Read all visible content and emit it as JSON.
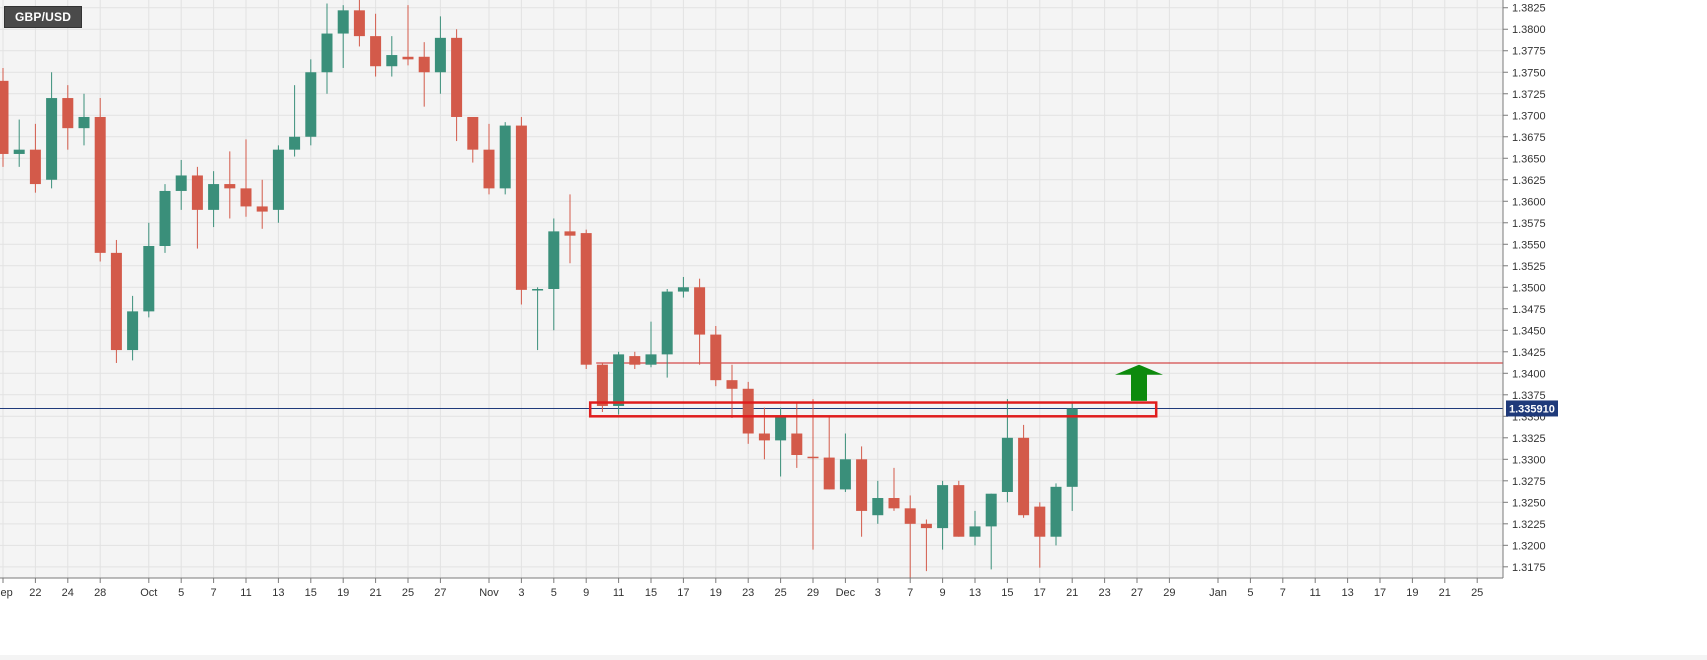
{
  "symbol": "GBP/USD",
  "current_price_label": "1.335910",
  "colors": {
    "up": "#3a8f7a",
    "down": "#d35a4a",
    "resistance_line": "#cc1f1f",
    "price_line": "#1f3a7a",
    "zone_border": "#e01e1e",
    "arrow": "#0d8a0d",
    "grid": "#e2e2e2",
    "price_badge": "#1f3a7a"
  },
  "chart_data": {
    "type": "candlestick",
    "title": "GBP/USD",
    "ylim": [
      1.3162,
      1.3834
    ],
    "y_ticks": [
      1.3175,
      1.32,
      1.3225,
      1.325,
      1.3275,
      1.33,
      1.3325,
      1.335,
      1.3375,
      1.34,
      1.3425,
      1.345,
      1.3475,
      1.35,
      1.3525,
      1.355,
      1.3575,
      1.36,
      1.3625,
      1.365,
      1.3675,
      1.37,
      1.3725,
      1.375,
      1.3775,
      1.38,
      1.3825
    ],
    "y_tick_labels": [
      "1.3175",
      "1.3200",
      "1.3225",
      "1.3250",
      "1.3275",
      "1.3300",
      "1.3325",
      "1.3350",
      "1.3375",
      "1.3400",
      "1.3425",
      "1.3450",
      "1.3475",
      "1.3500",
      "1.3525",
      "1.3550",
      "1.3575",
      "1.3600",
      "1.3625",
      "1.3650",
      "1.3675",
      "1.3700",
      "1.3725",
      "1.3750",
      "1.3775",
      "1.3800",
      "1.3825"
    ],
    "x_labels": [
      {
        "slot": 0,
        "label": "Sep"
      },
      {
        "slot": 2,
        "label": "22"
      },
      {
        "slot": 4,
        "label": "24"
      },
      {
        "slot": 6,
        "label": "28"
      },
      {
        "slot": 9,
        "label": "Oct"
      },
      {
        "slot": 11,
        "label": "5"
      },
      {
        "slot": 13,
        "label": "7"
      },
      {
        "slot": 15,
        "label": "11"
      },
      {
        "slot": 17,
        "label": "13"
      },
      {
        "slot": 19,
        "label": "15"
      },
      {
        "slot": 21,
        "label": "19"
      },
      {
        "slot": 23,
        "label": "21"
      },
      {
        "slot": 25,
        "label": "25"
      },
      {
        "slot": 27,
        "label": "27"
      },
      {
        "slot": 30,
        "label": "Nov"
      },
      {
        "slot": 32,
        "label": "3"
      },
      {
        "slot": 34,
        "label": "5"
      },
      {
        "slot": 36,
        "label": "9"
      },
      {
        "slot": 38,
        "label": "11"
      },
      {
        "slot": 40,
        "label": "15"
      },
      {
        "slot": 42,
        "label": "17"
      },
      {
        "slot": 44,
        "label": "19"
      },
      {
        "slot": 46,
        "label": "23"
      },
      {
        "slot": 48,
        "label": "25"
      },
      {
        "slot": 50,
        "label": "29"
      },
      {
        "slot": 52,
        "label": "Dec"
      },
      {
        "slot": 54,
        "label": "3"
      },
      {
        "slot": 56,
        "label": "7"
      },
      {
        "slot": 58,
        "label": "9"
      },
      {
        "slot": 60,
        "label": "13"
      },
      {
        "slot": 62,
        "label": "15"
      },
      {
        "slot": 64,
        "label": "17"
      },
      {
        "slot": 66,
        "label": "21"
      },
      {
        "slot": 68,
        "label": "23"
      },
      {
        "slot": 70,
        "label": "27"
      },
      {
        "slot": 72,
        "label": "29"
      },
      {
        "slot": 75,
        "label": "Jan"
      },
      {
        "slot": 77,
        "label": "5"
      },
      {
        "slot": 79,
        "label": "7"
      },
      {
        "slot": 81,
        "label": "11"
      },
      {
        "slot": 83,
        "label": "13"
      },
      {
        "slot": 85,
        "label": "17"
      },
      {
        "slot": 87,
        "label": "19"
      },
      {
        "slot": 89,
        "label": "21"
      },
      {
        "slot": 91,
        "label": "25"
      }
    ],
    "candles": [
      {
        "slot": 0,
        "o": 1.374,
        "h": 1.3755,
        "l": 1.364,
        "c": 1.3655
      },
      {
        "slot": 1,
        "o": 1.3655,
        "h": 1.3695,
        "l": 1.364,
        "c": 1.366
      },
      {
        "slot": 2,
        "o": 1.366,
        "h": 1.369,
        "l": 1.361,
        "c": 1.362
      },
      {
        "slot": 3,
        "o": 1.3625,
        "h": 1.375,
        "l": 1.3615,
        "c": 1.372
      },
      {
        "slot": 4,
        "o": 1.372,
        "h": 1.3735,
        "l": 1.366,
        "c": 1.3685
      },
      {
        "slot": 5,
        "o": 1.3685,
        "h": 1.3725,
        "l": 1.3665,
        "c": 1.3698
      },
      {
        "slot": 6,
        "o": 1.3698,
        "h": 1.372,
        "l": 1.353,
        "c": 1.354
      },
      {
        "slot": 7,
        "o": 1.354,
        "h": 1.3555,
        "l": 1.3412,
        "c": 1.3427
      },
      {
        "slot": 8,
        "o": 1.3427,
        "h": 1.349,
        "l": 1.3415,
        "c": 1.3472
      },
      {
        "slot": 9,
        "o": 1.3472,
        "h": 1.3575,
        "l": 1.3465,
        "c": 1.3548
      },
      {
        "slot": 10,
        "o": 1.3548,
        "h": 1.362,
        "l": 1.354,
        "c": 1.3612
      },
      {
        "slot": 11,
        "o": 1.3612,
        "h": 1.3648,
        "l": 1.359,
        "c": 1.363
      },
      {
        "slot": 12,
        "o": 1.363,
        "h": 1.364,
        "l": 1.3545,
        "c": 1.359
      },
      {
        "slot": 13,
        "o": 1.359,
        "h": 1.3635,
        "l": 1.357,
        "c": 1.362
      },
      {
        "slot": 14,
        "o": 1.362,
        "h": 1.3658,
        "l": 1.358,
        "c": 1.3615
      },
      {
        "slot": 15,
        "o": 1.3615,
        "h": 1.3672,
        "l": 1.3582,
        "c": 1.3594
      },
      {
        "slot": 16,
        "o": 1.3594,
        "h": 1.3625,
        "l": 1.3568,
        "c": 1.3588
      },
      {
        "slot": 17,
        "o": 1.359,
        "h": 1.3665,
        "l": 1.3575,
        "c": 1.366
      },
      {
        "slot": 18,
        "o": 1.366,
        "h": 1.3735,
        "l": 1.3652,
        "c": 1.3675
      },
      {
        "slot": 19,
        "o": 1.3675,
        "h": 1.3765,
        "l": 1.3665,
        "c": 1.375
      },
      {
        "slot": 20,
        "o": 1.375,
        "h": 1.383,
        "l": 1.3725,
        "c": 1.3795
      },
      {
        "slot": 21,
        "o": 1.3795,
        "h": 1.3828,
        "l": 1.3755,
        "c": 1.3822
      },
      {
        "slot": 22,
        "o": 1.3822,
        "h": 1.3835,
        "l": 1.378,
        "c": 1.3792
      },
      {
        "slot": 23,
        "o": 1.3792,
        "h": 1.3818,
        "l": 1.3745,
        "c": 1.3757
      },
      {
        "slot": 24,
        "o": 1.3757,
        "h": 1.3792,
        "l": 1.3745,
        "c": 1.377
      },
      {
        "slot": 25,
        "o": 1.3768,
        "h": 1.3828,
        "l": 1.3758,
        "c": 1.3765
      },
      {
        "slot": 26,
        "o": 1.3768,
        "h": 1.3785,
        "l": 1.371,
        "c": 1.375
      },
      {
        "slot": 27,
        "o": 1.375,
        "h": 1.3815,
        "l": 1.3725,
        "c": 1.379
      },
      {
        "slot": 28,
        "o": 1.379,
        "h": 1.38,
        "l": 1.367,
        "c": 1.3698
      },
      {
        "slot": 29,
        "o": 1.3698,
        "h": 1.3695,
        "l": 1.3645,
        "c": 1.366
      },
      {
        "slot": 30,
        "o": 1.366,
        "h": 1.369,
        "l": 1.3608,
        "c": 1.3615
      },
      {
        "slot": 31,
        "o": 1.3615,
        "h": 1.3692,
        "l": 1.3608,
        "c": 1.3688
      },
      {
        "slot": 32,
        "o": 1.3688,
        "h": 1.3698,
        "l": 1.348,
        "c": 1.3497
      },
      {
        "slot": 33,
        "o": 1.3497,
        "h": 1.35,
        "l": 1.3427,
        "c": 1.3498
      },
      {
        "slot": 34,
        "o": 1.3498,
        "h": 1.358,
        "l": 1.345,
        "c": 1.3565
      },
      {
        "slot": 35,
        "o": 1.3565,
        "h": 1.3608,
        "l": 1.3528,
        "c": 1.356
      },
      {
        "slot": 36,
        "o": 1.3563,
        "h": 1.3567,
        "l": 1.3405,
        "c": 1.341
      },
      {
        "slot": 37,
        "o": 1.341,
        "h": 1.3412,
        "l": 1.3355,
        "c": 1.3362
      },
      {
        "slot": 38,
        "o": 1.3362,
        "h": 1.3425,
        "l": 1.3352,
        "c": 1.3422
      },
      {
        "slot": 39,
        "o": 1.342,
        "h": 1.3425,
        "l": 1.3405,
        "c": 1.341
      },
      {
        "slot": 40,
        "o": 1.341,
        "h": 1.346,
        "l": 1.3407,
        "c": 1.3422
      },
      {
        "slot": 41,
        "o": 1.3422,
        "h": 1.3498,
        "l": 1.3395,
        "c": 1.3495
      },
      {
        "slot": 42,
        "o": 1.3495,
        "h": 1.3512,
        "l": 1.3488,
        "c": 1.35
      },
      {
        "slot": 43,
        "o": 1.35,
        "h": 1.351,
        "l": 1.341,
        "c": 1.3445
      },
      {
        "slot": 44,
        "o": 1.3445,
        "h": 1.3455,
        "l": 1.3385,
        "c": 1.3392
      },
      {
        "slot": 45,
        "o": 1.3392,
        "h": 1.341,
        "l": 1.3348,
        "c": 1.3382
      },
      {
        "slot": 46,
        "o": 1.3382,
        "h": 1.339,
        "l": 1.3318,
        "c": 1.333
      },
      {
        "slot": 47,
        "o": 1.333,
        "h": 1.336,
        "l": 1.33,
        "c": 1.3322
      },
      {
        "slot": 48,
        "o": 1.3322,
        "h": 1.336,
        "l": 1.328,
        "c": 1.335
      },
      {
        "slot": 49,
        "o": 1.333,
        "h": 1.3365,
        "l": 1.329,
        "c": 1.3305
      },
      {
        "slot": 50,
        "o": 1.3303,
        "h": 1.337,
        "l": 1.3195,
        "c": 1.3302
      },
      {
        "slot": 51,
        "o": 1.3302,
        "h": 1.335,
        "l": 1.3265,
        "c": 1.3265
      },
      {
        "slot": 52,
        "o": 1.3265,
        "h": 1.333,
        "l": 1.3262,
        "c": 1.33
      },
      {
        "slot": 53,
        "o": 1.33,
        "h": 1.3315,
        "l": 1.321,
        "c": 1.324
      },
      {
        "slot": 54,
        "o": 1.3235,
        "h": 1.3275,
        "l": 1.3225,
        "c": 1.3255
      },
      {
        "slot": 55,
        "o": 1.3255,
        "h": 1.329,
        "l": 1.324,
        "c": 1.3243
      },
      {
        "slot": 56,
        "o": 1.3243,
        "h": 1.3258,
        "l": 1.3162,
        "c": 1.3225
      },
      {
        "slot": 57,
        "o": 1.3225,
        "h": 1.323,
        "l": 1.317,
        "c": 1.322
      },
      {
        "slot": 58,
        "o": 1.322,
        "h": 1.3275,
        "l": 1.3195,
        "c": 1.327
      },
      {
        "slot": 59,
        "o": 1.327,
        "h": 1.3275,
        "l": 1.321,
        "c": 1.321
      },
      {
        "slot": 60,
        "o": 1.321,
        "h": 1.324,
        "l": 1.32,
        "c": 1.3222
      },
      {
        "slot": 61,
        "o": 1.3222,
        "h": 1.326,
        "l": 1.3172,
        "c": 1.326
      },
      {
        "slot": 62,
        "o": 1.3262,
        "h": 1.337,
        "l": 1.325,
        "c": 1.3325
      },
      {
        "slot": 63,
        "o": 1.3325,
        "h": 1.334,
        "l": 1.3232,
        "c": 1.3235
      },
      {
        "slot": 64,
        "o": 1.3245,
        "h": 1.325,
        "l": 1.3174,
        "c": 1.321
      },
      {
        "slot": 65,
        "o": 1.321,
        "h": 1.3272,
        "l": 1.32,
        "c": 1.3268
      },
      {
        "slot": 66,
        "o": 1.3268,
        "h": 1.3365,
        "l": 1.324,
        "c": 1.3359
      }
    ],
    "annotations": {
      "resistance_price": 1.3412,
      "current_price": 1.33591,
      "zone": {
        "from_slot": 36,
        "to_slot": 71,
        "low": 1.335,
        "high": 1.3366
      },
      "arrow": {
        "slot": 70,
        "direction": "up",
        "base": 1.3368,
        "tip": 1.341
      }
    }
  }
}
